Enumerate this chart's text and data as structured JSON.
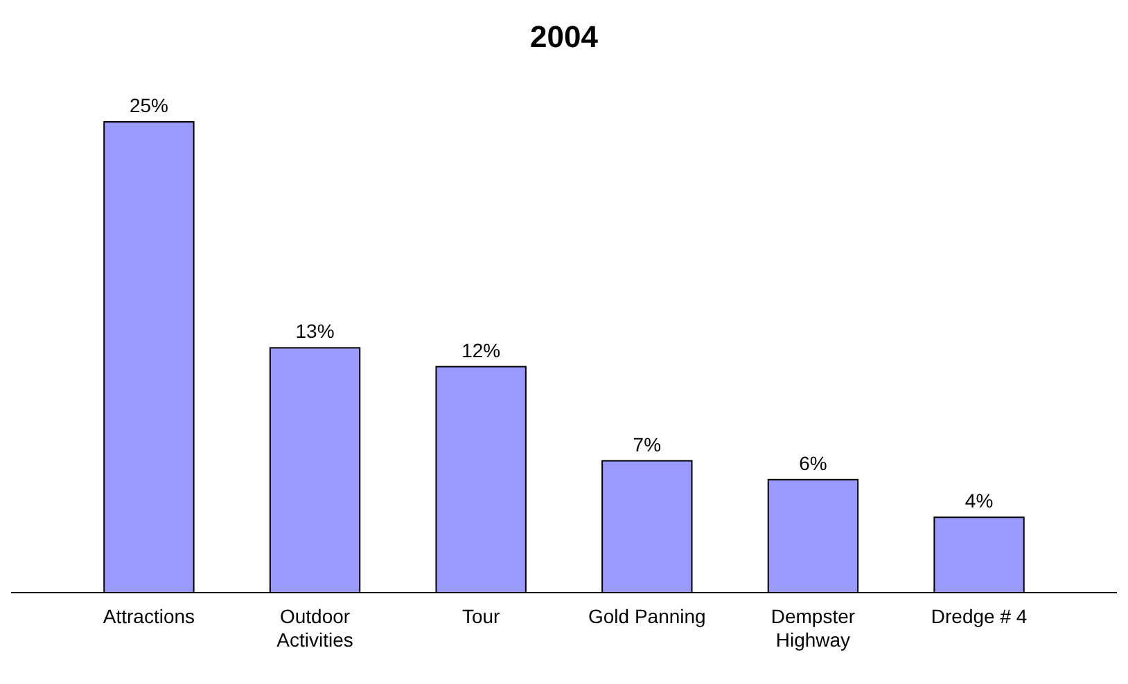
{
  "chart_data": {
    "type": "bar",
    "title": "2004",
    "categories": [
      "Attractions",
      "Outdoor Activities",
      "Tour",
      "Gold Panning",
      "Dempster Highway",
      "Dredge # 4"
    ],
    "values": [
      25,
      13,
      12,
      7,
      6,
      4
    ],
    "value_labels": [
      "25%",
      "13%",
      "12%",
      "7%",
      "6%",
      "4%"
    ],
    "color": "#9999ff"
  }
}
